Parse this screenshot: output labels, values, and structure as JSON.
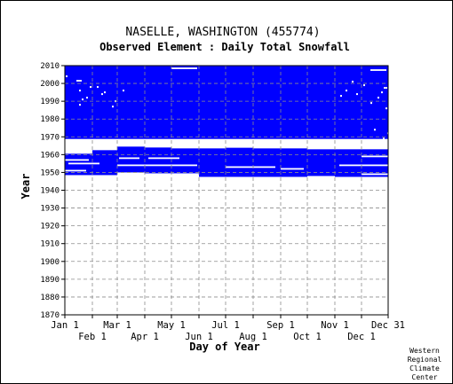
{
  "chart_data": {
    "type": "heatmap",
    "title": "NASELLE, WASHINGTON   (455774)",
    "subtitle": "Observed Element : Daily Total Snowfall",
    "xlabel": "Day of Year",
    "ylabel": "Year",
    "ylim": [
      1870,
      2010
    ],
    "y_ticks": [
      1870,
      1880,
      1890,
      1900,
      1910,
      1920,
      1930,
      1940,
      1950,
      1960,
      1970,
      1980,
      1990,
      2000,
      2010
    ],
    "x_range": [
      1,
      365
    ],
    "x_ticks_upper": [
      {
        "label": "Jan 1",
        "day": 1
      },
      {
        "label": "Mar 1",
        "day": 60
      },
      {
        "label": "May 1",
        "day": 121
      },
      {
        "label": "Jul 1",
        "day": 182
      },
      {
        "label": "Sep 1",
        "day": 244
      },
      {
        "label": "Nov 1",
        "day": 305
      },
      {
        "label": "Dec 31",
        "day": 365
      }
    ],
    "x_ticks_lower": [
      {
        "label": "Feb 1",
        "day": 32
      },
      {
        "label": "Apr 1",
        "day": 91
      },
      {
        "label": "Jun 1",
        "day": 152
      },
      {
        "label": "Aug 1",
        "day": 213
      },
      {
        "label": "Oct 1",
        "day": 274
      },
      {
        "label": "Dec 1",
        "day": 335
      }
    ],
    "grid": true,
    "data_color": "#0000ff",
    "background_color": "#ffffff",
    "grid_color": "#8c8c8c",
    "coverage_blocks": [
      {
        "day_start": 1,
        "day_end": 365,
        "year_start": 1968.8,
        "year_end": 2010.5
      },
      {
        "day_start": 1,
        "day_end": 32,
        "year_start": 1948.5,
        "year_end": 1960.5
      },
      {
        "day_start": 32,
        "day_end": 60,
        "year_start": 1948.5,
        "year_end": 1962.5
      },
      {
        "day_start": 60,
        "day_end": 91,
        "year_start": 1950.0,
        "year_end": 1964.5
      },
      {
        "day_start": 91,
        "day_end": 121,
        "year_start": 1949.5,
        "year_end": 1964.0
      },
      {
        "day_start": 121,
        "day_end": 152,
        "year_start": 1949.5,
        "year_end": 1963.5
      },
      {
        "day_start": 152,
        "day_end": 182,
        "year_start": 1947.5,
        "year_end": 1963.5
      },
      {
        "day_start": 182,
        "day_end": 213,
        "year_start": 1947.5,
        "year_end": 1964.0
      },
      {
        "day_start": 213,
        "day_end": 244,
        "year_start": 1947.5,
        "year_end": 1963.5
      },
      {
        "day_start": 244,
        "day_end": 274,
        "year_start": 1947.5,
        "year_end": 1963.5
      },
      {
        "day_start": 274,
        "day_end": 305,
        "year_start": 1948.0,
        "year_end": 1963.0
      },
      {
        "day_start": 305,
        "day_end": 335,
        "year_start": 1947.5,
        "year_end": 1963.0
      },
      {
        "day_start": 335,
        "day_end": 365,
        "year_start": 1947.5,
        "year_end": 1963.0
      }
    ],
    "missing_segments": [
      {
        "day_start": 1,
        "day_end": 25,
        "year": 1951
      },
      {
        "day_start": 5,
        "day_end": 40,
        "year": 1955
      },
      {
        "day_start": 1,
        "day_end": 28,
        "year": 1957
      },
      {
        "day_start": 62,
        "day_end": 85,
        "year": 1958
      },
      {
        "day_start": 60,
        "day_end": 150,
        "year": 1954
      },
      {
        "day_start": 95,
        "day_end": 130,
        "year": 1958
      },
      {
        "day_start": 182,
        "day_end": 215,
        "year": 1964.3
      },
      {
        "day_start": 182,
        "day_end": 238,
        "year": 1953
      },
      {
        "day_start": 244,
        "day_end": 270,
        "year": 1952
      },
      {
        "day_start": 335,
        "day_end": 365,
        "year": 1959
      },
      {
        "day_start": 310,
        "day_end": 365,
        "year": 1954
      },
      {
        "day_start": 335,
        "day_end": 365,
        "year": 1949
      },
      {
        "day_start": 121,
        "day_end": 150,
        "year": 2008.5
      },
      {
        "day_start": 345,
        "day_end": 363,
        "year": 2007.5
      },
      {
        "day_start": 14,
        "day_end": 20,
        "year": 2001.5
      },
      {
        "day_start": 360,
        "day_end": 364,
        "year": 1997.5
      }
    ],
    "missing_points": [
      {
        "day": 3,
        "year": 2004
      },
      {
        "day": 18,
        "year": 1988
      },
      {
        "day": 21,
        "year": 1991
      },
      {
        "day": 26,
        "year": 1992
      },
      {
        "day": 18,
        "year": 1996
      },
      {
        "day": 30,
        "year": 1998
      },
      {
        "day": 38,
        "year": 1998
      },
      {
        "day": 43,
        "year": 1994
      },
      {
        "day": 46,
        "year": 1995
      },
      {
        "day": 55,
        "year": 1987
      },
      {
        "day": 58,
        "year": 1990
      },
      {
        "day": 67,
        "year": 1996
      },
      {
        "day": 312,
        "year": 1993
      },
      {
        "day": 318,
        "year": 1996
      },
      {
        "day": 325,
        "year": 2001
      },
      {
        "day": 330,
        "year": 1994
      },
      {
        "day": 338,
        "year": 1999
      },
      {
        "day": 346,
        "year": 1989
      },
      {
        "day": 354,
        "year": 1992
      },
      {
        "day": 358,
        "year": 1995
      },
      {
        "day": 363,
        "year": 1986
      },
      {
        "day": 365,
        "year": 1972
      },
      {
        "day": 360,
        "year": 1969
      },
      {
        "day": 350,
        "year": 1974
      }
    ]
  },
  "credit": [
    "Western",
    "Regional",
    "Climate",
    "Center"
  ]
}
